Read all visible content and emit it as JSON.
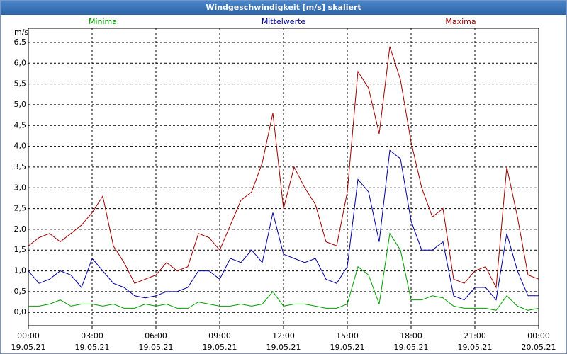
{
  "chart_data": {
    "type": "line",
    "title": "Windgeschwindigkeit [m/s] skaliert",
    "ylabel": "m/s",
    "grid": true,
    "xlim": [
      0,
      24
    ],
    "ylim": [
      -0.32,
      6.84
    ],
    "xticks": [
      {
        "value": 0,
        "label": "00:00",
        "date": "19.05.21"
      },
      {
        "value": 3,
        "label": "03:00",
        "date": "19.05.21"
      },
      {
        "value": 6,
        "label": "06:00",
        "date": "19.05.21"
      },
      {
        "value": 9,
        "label": "09:00",
        "date": "19.05.21"
      },
      {
        "value": 12,
        "label": "12:00",
        "date": "19.05.21"
      },
      {
        "value": 15,
        "label": "15:00",
        "date": "19.05.21"
      },
      {
        "value": 18,
        "label": "18:00",
        "date": "19.05.21"
      },
      {
        "value": 21,
        "label": "21:00",
        "date": "19.05.21"
      },
      {
        "value": 24,
        "label": "00:00",
        "date": "20.05.21"
      }
    ],
    "yticks": [
      {
        "value": 0,
        "label": "0,0"
      },
      {
        "value": 0.5,
        "label": "0,5"
      },
      {
        "value": 1,
        "label": "1,0"
      },
      {
        "value": 1.5,
        "label": "1,5"
      },
      {
        "value": 2,
        "label": "2,0"
      },
      {
        "value": 2.5,
        "label": "2,5"
      },
      {
        "value": 3,
        "label": "3,0"
      },
      {
        "value": 3.5,
        "label": "3,5"
      },
      {
        "value": 4,
        "label": "4,0"
      },
      {
        "value": 4.5,
        "label": "4,5"
      },
      {
        "value": 5,
        "label": "5,0"
      },
      {
        "value": 5.5,
        "label": "5,5"
      },
      {
        "value": 6,
        "label": "6,0"
      },
      {
        "value": 6.5,
        "label": "6,5"
      }
    ],
    "x": [
      0,
      0.5,
      1,
      1.5,
      2,
      2.5,
      3,
      3.5,
      4,
      4.5,
      5,
      5.5,
      6,
      6.5,
      7,
      7.5,
      8,
      8.5,
      9,
      9.5,
      10,
      10.5,
      11,
      11.5,
      12,
      12.5,
      13,
      13.5,
      14,
      14.5,
      15,
      15.5,
      16,
      16.5,
      17,
      17.5,
      18,
      18.5,
      19,
      19.5,
      20,
      20.5,
      21,
      21.5,
      22,
      22.5,
      23,
      23.5,
      24
    ],
    "series": [
      {
        "name": "Minima",
        "color": "#00a000",
        "values": [
          0.15,
          0.15,
          0.2,
          0.3,
          0.15,
          0.2,
          0.2,
          0.15,
          0.2,
          0.1,
          0.1,
          0.2,
          0.15,
          0.2,
          0.1,
          0.1,
          0.25,
          0.2,
          0.15,
          0.15,
          0.2,
          0.15,
          0.2,
          0.5,
          0.15,
          0.2,
          0.2,
          0.15,
          0.1,
          0.1,
          0.2,
          1.1,
          0.9,
          0.2,
          1.9,
          1.5,
          0.3,
          0.3,
          0.4,
          0.35,
          0.15,
          0.1,
          0.1,
          0.1,
          0.05,
          0.4,
          0.15,
          0.05,
          0.1
        ]
      },
      {
        "name": "Mittelwerte",
        "color": "#0000a0",
        "values": [
          1.0,
          0.7,
          0.8,
          1.0,
          0.9,
          0.6,
          1.3,
          1.0,
          0.7,
          0.6,
          0.4,
          0.35,
          0.4,
          0.5,
          0.5,
          0.6,
          1.0,
          1.0,
          0.8,
          1.3,
          1.2,
          1.5,
          1.2,
          2.4,
          1.4,
          1.3,
          1.2,
          1.3,
          0.8,
          0.7,
          1.1,
          3.2,
          2.9,
          1.7,
          3.9,
          3.7,
          2.2,
          1.5,
          1.5,
          1.7,
          0.4,
          0.3,
          0.6,
          0.6,
          0.3,
          1.9,
          1.0,
          0.4,
          0.4
        ]
      },
      {
        "name": "Maxima",
        "color": "#a00000",
        "values": [
          1.6,
          1.8,
          1.9,
          1.7,
          1.9,
          2.1,
          2.4,
          2.8,
          1.6,
          1.2,
          0.7,
          0.8,
          0.9,
          1.2,
          1.0,
          1.1,
          1.9,
          1.8,
          1.5,
          2.1,
          2.7,
          2.9,
          3.6,
          4.8,
          2.5,
          3.5,
          3.0,
          2.6,
          1.7,
          1.6,
          2.9,
          5.8,
          5.4,
          4.3,
          6.4,
          5.6,
          4.1,
          3.0,
          2.3,
          2.5,
          0.8,
          0.7,
          1.0,
          1.1,
          0.6,
          3.5,
          2.3,
          0.9,
          0.8
        ]
      }
    ]
  }
}
